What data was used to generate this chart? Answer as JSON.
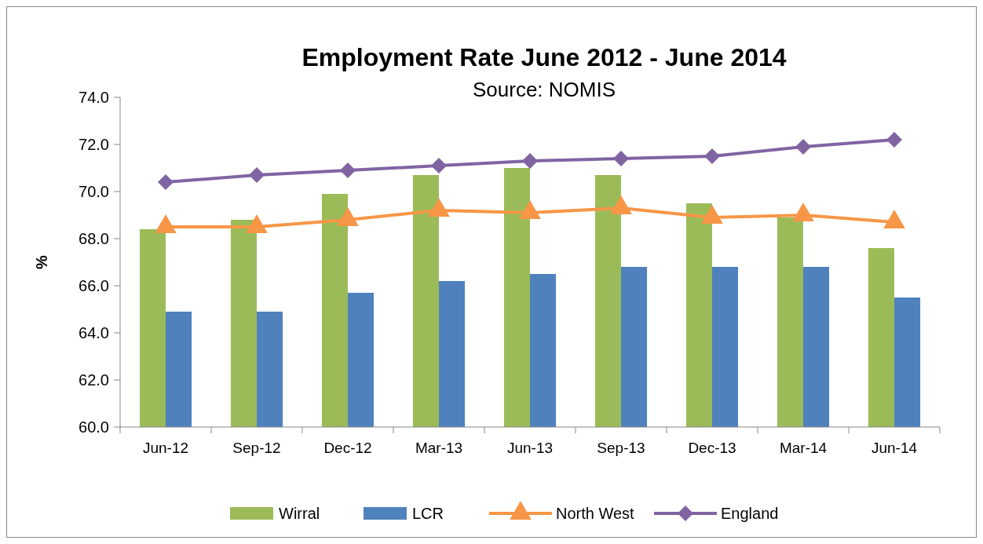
{
  "chart_data": {
    "type": "bar",
    "title": "Employment Rate June 2012 - June 2014",
    "subtitle": "Source: NOMIS",
    "ylabel": "%",
    "categories": [
      "Jun-12",
      "Sep-12",
      "Dec-12",
      "Mar-13",
      "Jun-13",
      "Sep-13",
      "Dec-13",
      "Mar-14",
      "Jun-14"
    ],
    "series": [
      {
        "name": "Wirral",
        "color": "#9bbb59",
        "values": [
          68.4,
          68.8,
          69.9,
          70.7,
          71.0,
          70.7,
          69.5,
          68.9,
          67.6
        ]
      },
      {
        "name": "LCR",
        "color": "#4f81bd",
        "values": [
          64.9,
          64.9,
          65.7,
          66.2,
          66.5,
          66.8,
          66.8,
          66.8,
          65.5
        ]
      },
      {
        "name": "North West",
        "type": "line",
        "marker": "triangle",
        "color": "#f79646",
        "values": [
          68.5,
          68.5,
          68.8,
          69.2,
          69.1,
          69.3,
          68.9,
          69.0,
          68.7
        ]
      },
      {
        "name": "England",
        "type": "line",
        "marker": "diamond",
        "color": "#8064a2",
        "values": [
          70.4,
          70.7,
          70.9,
          71.1,
          71.3,
          71.4,
          71.5,
          71.9,
          72.2
        ]
      }
    ],
    "ylim": [
      60,
      74
    ],
    "yticks": [
      {
        "value": 60,
        "label": "60.0"
      },
      {
        "value": 62,
        "label": "62.0"
      },
      {
        "value": 64,
        "label": "64.0"
      },
      {
        "value": 66,
        "label": "66.0"
      },
      {
        "value": 68,
        "label": "68.0"
      },
      {
        "value": 70,
        "label": "70.0"
      },
      {
        "value": 72,
        "label": "72.0"
      },
      {
        "value": 74,
        "label": "74.0"
      }
    ],
    "grid": false,
    "legend": "bottom"
  }
}
